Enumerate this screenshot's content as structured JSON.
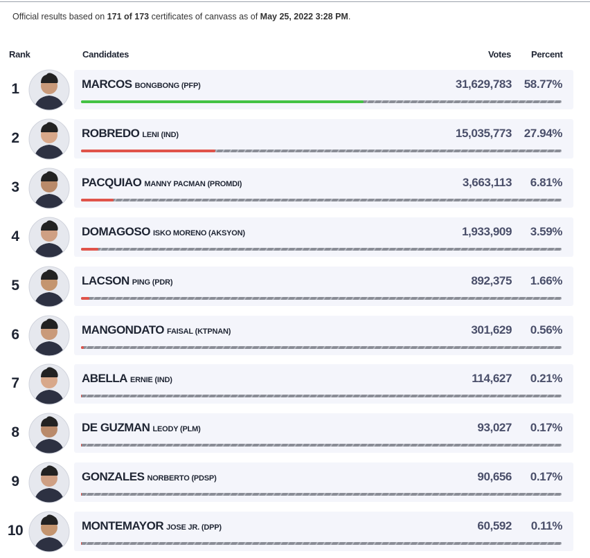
{
  "note": {
    "pre": "Official results based on",
    "count": "171 of 173",
    "mid": "certificates of canvass as of",
    "date": "May 25, 2022 3:28 PM",
    "end": "."
  },
  "headers": {
    "rank": "Rank",
    "candidates": "Candidates",
    "votes": "Votes",
    "percent": "Percent"
  },
  "bar_colors": {
    "leader": "#44c244",
    "other": "#e0534a"
  },
  "rows": [
    {
      "rank": "1",
      "surname": "MARCOS",
      "name": "BONGBONG (PFP)",
      "votes": "31,629,783",
      "percent": 58.77,
      "percent_label": "58.77%"
    },
    {
      "rank": "2",
      "surname": "ROBREDO",
      "name": "LENI (IND)",
      "votes": "15,035,773",
      "percent": 27.94,
      "percent_label": "27.94%"
    },
    {
      "rank": "3",
      "surname": "PACQUIAO",
      "name": "MANNY PACMAN (PROMDI)",
      "votes": "3,663,113",
      "percent": 6.81,
      "percent_label": "6.81%"
    },
    {
      "rank": "4",
      "surname": "DOMAGOSO",
      "name": "ISKO MORENO (AKSYON)",
      "votes": "1,933,909",
      "percent": 3.59,
      "percent_label": "3.59%"
    },
    {
      "rank": "5",
      "surname": "LACSON",
      "name": "PING (PDR)",
      "votes": "892,375",
      "percent": 1.66,
      "percent_label": "1.66%"
    },
    {
      "rank": "6",
      "surname": "MANGONDATO",
      "name": "FAISAL (KTPNAN)",
      "votes": "301,629",
      "percent": 0.56,
      "percent_label": "0.56%"
    },
    {
      "rank": "7",
      "surname": "ABELLA",
      "name": "ERNIE (IND)",
      "votes": "114,627",
      "percent": 0.21,
      "percent_label": "0.21%"
    },
    {
      "rank": "8",
      "surname": "DE GUZMAN",
      "name": "LEODY (PLM)",
      "votes": "93,027",
      "percent": 0.17,
      "percent_label": "0.17%"
    },
    {
      "rank": "9",
      "surname": "GONZALES",
      "name": "NORBERTO (PDSP)",
      "votes": "90,656",
      "percent": 0.17,
      "percent_label": "0.17%"
    },
    {
      "rank": "10",
      "surname": "MONTEMAYOR",
      "name": "JOSE JR. (DPP)",
      "votes": "60,592",
      "percent": 0.11,
      "percent_label": "0.11%"
    }
  ]
}
